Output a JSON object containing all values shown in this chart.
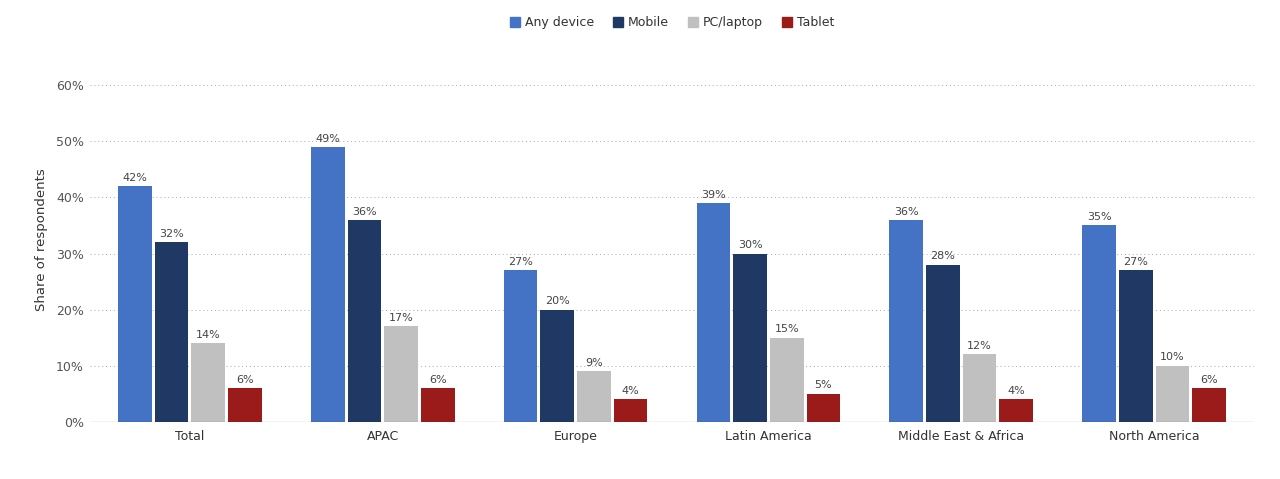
{
  "categories": [
    "Total",
    "APAC",
    "Europe",
    "Latin America",
    "Middle East & Africa",
    "North America"
  ],
  "series": {
    "Any device": [
      42,
      49,
      27,
      39,
      36,
      35
    ],
    "Mobile": [
      32,
      36,
      20,
      30,
      28,
      27
    ],
    "PC/laptop": [
      14,
      17,
      9,
      15,
      12,
      10
    ],
    "Tablet": [
      6,
      6,
      4,
      5,
      4,
      6
    ]
  },
  "colors": {
    "Any device": "#4472C4",
    "Mobile": "#1F3864",
    "PC/laptop": "#C0C0C0",
    "Tablet": "#9B1B1B"
  },
  "ylabel": "Share of respondents",
  "ylim": [
    0,
    65
  ],
  "yticks": [
    0,
    10,
    20,
    30,
    40,
    50,
    60
  ],
  "ytick_labels": [
    "0%",
    "10%",
    "20%",
    "30%",
    "40%",
    "50%",
    "60%"
  ],
  "bar_width": 0.19,
  "label_fontsize": 8.0,
  "axis_fontsize": 9.5,
  "legend_fontsize": 9,
  "tick_fontsize": 9,
  "background_color": "#FFFFFF"
}
